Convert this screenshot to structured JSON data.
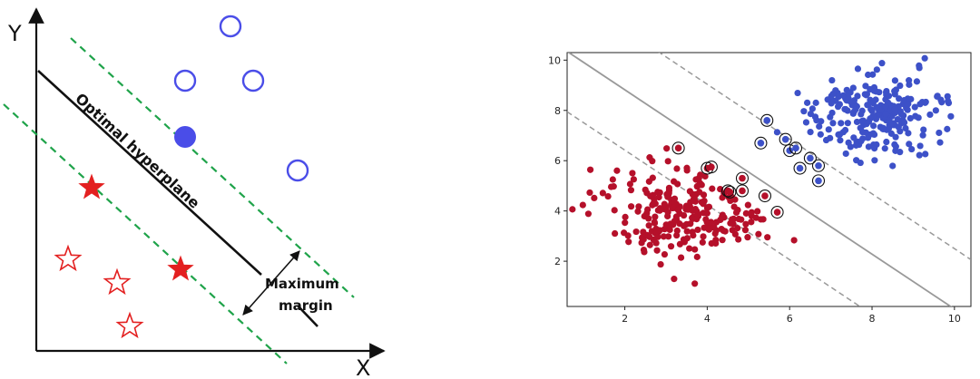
{
  "diagram": {
    "x_axis_label": "X",
    "y_axis_label": "Y",
    "hyperplane_label": "Optimal hyperplane",
    "margin_label_line1": "Maximum",
    "margin_label_line2": "margin",
    "colors": {
      "class_circle": "#4a4de8",
      "class_star": "#e32020",
      "margin_line": "#1fa34a",
      "hyperplane": "#111111"
    },
    "icons": [
      "circle-outline-icon",
      "circle-filled-icon",
      "star-outline-icon",
      "star-filled-icon",
      "double-arrow-icon"
    ]
  },
  "chart_data": {
    "type": "scatter",
    "title": "",
    "xlabel": "",
    "ylabel": "",
    "xlim": [
      0.6,
      10.4
    ],
    "ylim": [
      0.2,
      10.3
    ],
    "x_ticks": [
      "2",
      "4",
      "6",
      "8",
      "10"
    ],
    "y_ticks": [
      "2",
      "4",
      "6",
      "8",
      "10"
    ],
    "grid": false,
    "decision_boundary": {
      "slope": -1.09,
      "intercept": 11.0,
      "style": "solid",
      "color": "#999999"
    },
    "margins": [
      {
        "slope": -1.09,
        "intercept": 8.6,
        "style": "dashed",
        "color": "#999999"
      },
      {
        "slope": -1.09,
        "intercept": 13.4,
        "style": "dashed",
        "color": "#999999"
      }
    ],
    "series": [
      {
        "color": "#b5102a",
        "center": [
          3.5,
          3.9
        ],
        "spread": [
          0.95,
          0.95
        ],
        "count": 240,
        "support_vectors": [
          [
            3.3,
            6.5
          ],
          [
            4.0,
            5.7
          ],
          [
            4.1,
            5.75
          ],
          [
            4.5,
            4.8
          ],
          [
            4.55,
            4.75
          ],
          [
            4.85,
            5.3
          ],
          [
            4.85,
            4.8
          ],
          [
            5.4,
            4.6
          ],
          [
            5.7,
            3.95
          ]
        ]
      },
      {
        "color": "#3d51c8",
        "center": [
          8.1,
          7.9
        ],
        "spread": [
          0.8,
          0.8
        ],
        "count": 240,
        "support_vectors": [
          [
            5.45,
            7.6
          ],
          [
            5.3,
            6.7
          ],
          [
            5.9,
            6.85
          ],
          [
            6.0,
            6.4
          ],
          [
            6.15,
            6.5
          ],
          [
            6.5,
            6.1
          ],
          [
            6.7,
            5.8
          ],
          [
            6.25,
            5.7
          ],
          [
            6.7,
            5.2
          ]
        ]
      }
    ]
  }
}
